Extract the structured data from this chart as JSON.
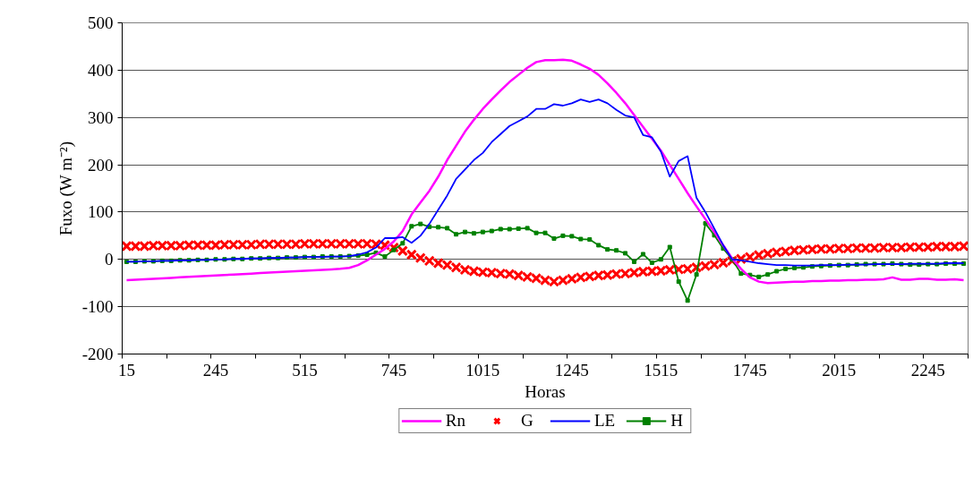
{
  "chart_data": {
    "type": "line",
    "xlabel": "Horas",
    "ylabel": "Fuxo (W m⁻²)",
    "categories": [
      "15",
      null,
      null,
      null,
      null,
      null,
      null,
      null,
      null,
      null,
      "245",
      null,
      null,
      null,
      null,
      null,
      null,
      null,
      null,
      null,
      "515",
      null,
      null,
      null,
      null,
      null,
      null,
      null,
      null,
      null,
      "745",
      null,
      null,
      null,
      null,
      null,
      null,
      null,
      null,
      null,
      "1015",
      null,
      null,
      null,
      null,
      null,
      null,
      null,
      null,
      null,
      "1245",
      null,
      null,
      null,
      null,
      null,
      null,
      null,
      null,
      null,
      "1515",
      null,
      null,
      null,
      null,
      null,
      null,
      null,
      null,
      null,
      "1745",
      null,
      null,
      null,
      null,
      null,
      null,
      null,
      null,
      null,
      "2015",
      null,
      null,
      null,
      null,
      null,
      null,
      null,
      null,
      null,
      "2245",
      null,
      null,
      null,
      null
    ],
    "series": [
      {
        "name": "Rn",
        "marker": "none",
        "color": "#ff00ff",
        "values": [
          -44,
          -43,
          -42,
          -41,
          -40,
          -39,
          -38,
          -37,
          -36,
          -35,
          -34,
          -33,
          -32,
          -31,
          -30,
          -29,
          -28,
          -27,
          -26,
          -25,
          -24,
          -23,
          -22,
          -21,
          -20,
          -18,
          -12,
          -2,
          10,
          22,
          38,
          60,
          95,
          120,
          145,
          175,
          210,
          240,
          270,
          295,
          318,
          338,
          357,
          375,
          390,
          405,
          417,
          421,
          421,
          422,
          420,
          412,
          403,
          390,
          372,
          352,
          330,
          305,
          280,
          255,
          230,
          200,
          170,
          140,
          112,
          85,
          58,
          30,
          2,
          -20,
          -38,
          -47,
          -50,
          -49,
          -48,
          -47,
          -47,
          -46,
          -46,
          -45,
          -45,
          -44,
          -44,
          -43,
          -43,
          -42,
          -38,
          -43,
          -43,
          -41,
          -41,
          -43,
          -43,
          -42,
          -44
        ]
      },
      {
        "name": "G",
        "type": "scatter",
        "marker": "cross",
        "color": "#ff0000",
        "values": [
          28,
          28,
          28,
          29,
          29,
          29,
          29,
          30,
          30,
          30,
          30,
          31,
          31,
          31,
          31,
          32,
          32,
          32,
          32,
          32,
          33,
          33,
          33,
          33,
          33,
          33,
          33,
          33,
          32,
          30,
          25,
          18,
          10,
          3,
          -3,
          -8,
          -12,
          -17,
          -22,
          -25,
          -27,
          -28,
          -30,
          -31,
          -34,
          -37,
          -40,
          -44,
          -47,
          -44,
          -41,
          -38,
          -36,
          -34,
          -33,
          -31,
          -30,
          -28,
          -26,
          -25,
          -24,
          -22,
          -21,
          -20,
          -17,
          -14,
          -11,
          -7,
          -3,
          1,
          5,
          9,
          12,
          15,
          17,
          19,
          20,
          21,
          22,
          22,
          23,
          23,
          24,
          24,
          24,
          25,
          25,
          25,
          26,
          26,
          26,
          27,
          27,
          27,
          28
        ]
      },
      {
        "name": "LE",
        "marker": "none",
        "color": "#0000ff",
        "values": [
          -5,
          -5,
          -4,
          -4,
          -3,
          -3,
          -2,
          -2,
          -1,
          -1,
          0,
          0,
          1,
          1,
          2,
          2,
          3,
          3,
          4,
          4,
          5,
          5,
          5,
          6,
          6,
          7,
          10,
          15,
          25,
          45,
          45,
          47,
          35,
          50,
          75,
          105,
          135,
          170,
          190,
          210,
          225,
          248,
          265,
          282,
          292,
          302,
          318,
          318,
          328,
          325,
          330,
          338,
          333,
          338,
          330,
          316,
          304,
          300,
          263,
          258,
          228,
          175,
          208,
          218,
          130,
          100,
          65,
          30,
          0,
          -2,
          -5,
          -8,
          -10,
          -12,
          -12,
          -13,
          -13,
          -13,
          -12,
          -12,
          -12,
          -11,
          -11,
          -11,
          -10,
          -10,
          -10,
          -10,
          -9,
          -9,
          -9,
          -9,
          -8,
          -8,
          -8
        ]
      },
      {
        "name": "H",
        "marker": "square",
        "color": "#008000",
        "values": [
          -5,
          -5,
          -4,
          -4,
          -3,
          -3,
          -2,
          -2,
          -1,
          -1,
          0,
          0,
          1,
          1,
          2,
          2,
          3,
          3,
          4,
          4,
          5,
          5,
          6,
          6,
          6,
          7,
          8,
          10,
          14,
          6,
          20,
          34,
          70,
          75,
          69,
          68,
          66,
          53,
          58,
          55,
          58,
          60,
          64,
          64,
          65,
          66,
          56,
          56,
          44,
          50,
          49,
          43,
          42,
          30,
          21,
          19,
          13,
          -5,
          11,
          -7,
          0,
          26,
          -47,
          -87,
          -32,
          76,
          51,
          23,
          0,
          -30,
          -33,
          -37,
          -32,
          -25,
          -20,
          -18,
          -17,
          -15,
          -14,
          -13,
          -12,
          -12,
          -11,
          -10,
          -10,
          -10,
          -9,
          -10,
          -11,
          -11,
          -10,
          -10,
          -9,
          -9,
          -9
        ]
      }
    ],
    "ylim": [
      -200,
      500
    ],
    "yticks": [
      -200,
      -100,
      0,
      100,
      200,
      300,
      400,
      500
    ],
    "grid": "y",
    "legend": "bottom"
  }
}
